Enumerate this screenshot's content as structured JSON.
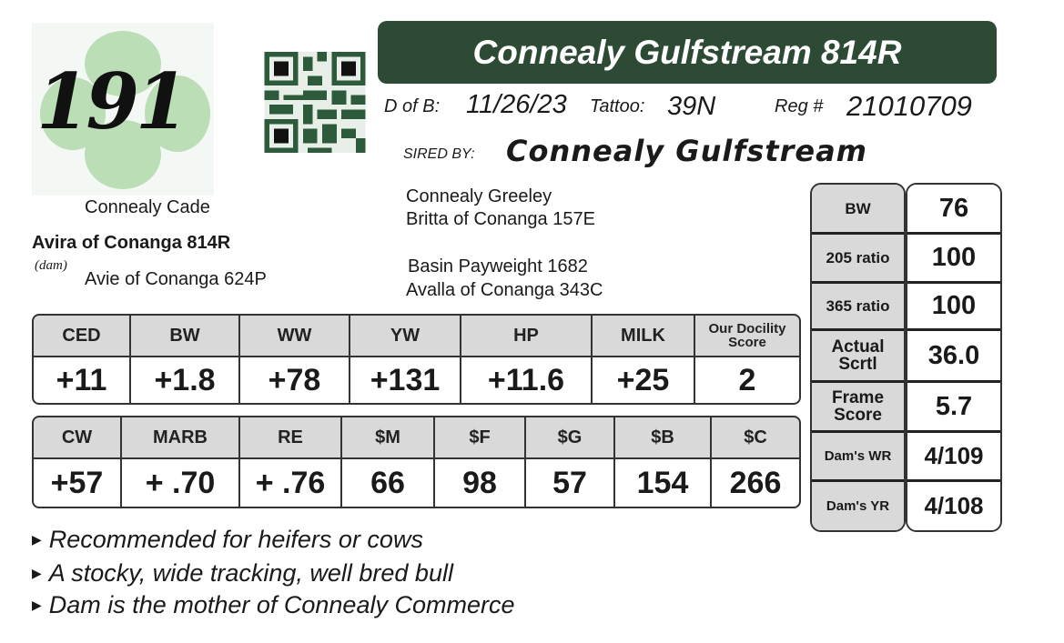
{
  "lot": {
    "number": "191",
    "logo_icon": "shamrock-icon",
    "qr_icon": "qr-code-icon"
  },
  "title": "Connealy Gulfstream 814R",
  "info": {
    "dob_label": "D of B:",
    "dob": "11/26/23",
    "tattoo_label": "Tattoo:",
    "tattoo": "39N",
    "reg_label": "Reg #",
    "reg": "21010709",
    "sired_label": "SIRED BY:",
    "sire": "Connealy Gulfstream"
  },
  "pedigree": {
    "dam_sire": "Connealy Cade",
    "dam": "Avira of Conanga 814R",
    "dam_tag": "(dam)",
    "dam_dam": "Avie of Conanga 624P",
    "sire_sire": "Connealy Greeley",
    "sire_dam": "Britta of Conanga 157E",
    "ss_sire": "Basin Payweight 1682",
    "ss_dam": "Avalla of Conanga 343C"
  },
  "epd1": {
    "headers": [
      "CED",
      "BW",
      "WW",
      "YW",
      "HP",
      "MILK",
      "Our Docility Score"
    ],
    "values": [
      "+11",
      "+1.8",
      "+78",
      "+131",
      "+11.6",
      "+25",
      "2"
    ]
  },
  "epd2": {
    "headers": [
      "CW",
      "MARB",
      "RE",
      "$M",
      "$F",
      "$G",
      "$B",
      "$C"
    ],
    "values": [
      "+57",
      "+ .70",
      "+ .76",
      "66",
      "98",
      "57",
      "154",
      "266"
    ]
  },
  "stats": [
    {
      "label": "BW",
      "value": "76"
    },
    {
      "label": "205 ratio",
      "value": "100"
    },
    {
      "label": "365 ratio",
      "value": "100"
    },
    {
      "label": "Actual Scrtl",
      "value": "36.0"
    },
    {
      "label": "Frame Score",
      "value": "5.7"
    },
    {
      "label": "Dam's WR",
      "value": "4/109"
    },
    {
      "label": "Dam's YR",
      "value": "4/108"
    }
  ],
  "notes": [
    "Recommended for heifers or cows",
    "A stocky, wide tracking, well bred bull",
    "Dam is the mother of Connealy Commerce"
  ],
  "colors": {
    "title_bg": "#2c4a34",
    "header_bg": "#d9d9d9",
    "shamrock": "#a8d5a2"
  }
}
